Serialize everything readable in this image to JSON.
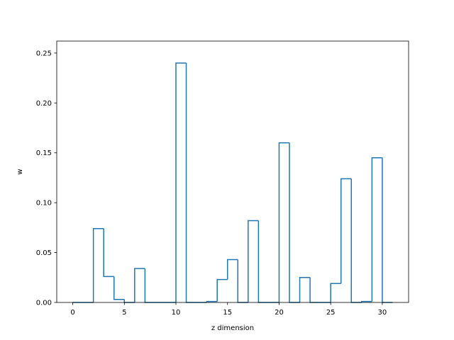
{
  "chart_data": {
    "type": "bar",
    "style": "step-histogram",
    "title": "",
    "xlabel": "z dimension",
    "ylabel": "w",
    "x": [
      0,
      1,
      2,
      3,
      4,
      5,
      6,
      7,
      8,
      9,
      10,
      11,
      12,
      13,
      14,
      15,
      16,
      17,
      18,
      19,
      20,
      21,
      22,
      23,
      24,
      25,
      26,
      27,
      28,
      29,
      30
    ],
    "values": [
      0,
      0,
      0.074,
      0.026,
      0.003,
      0,
      0.034,
      0,
      0,
      0,
      0.24,
      0,
      0,
      0.001,
      0.023,
      0.043,
      0,
      0.082,
      0,
      0,
      0.16,
      0,
      0.025,
      0,
      0,
      0.019,
      0.124,
      0,
      0.001,
      0.145,
      0
    ],
    "xlim": [
      -1.55,
      32.55
    ],
    "ylim": [
      0,
      0.262
    ],
    "xticks": [
      0,
      5,
      10,
      15,
      20,
      25,
      30
    ],
    "yticks": [
      0.0,
      0.05,
      0.1,
      0.15,
      0.2,
      0.25
    ],
    "xtick_labels": [
      "0",
      "5",
      "10",
      "15",
      "20",
      "25",
      "30"
    ],
    "ytick_labels": [
      "0.00",
      "0.05",
      "0.10",
      "0.15",
      "0.20",
      "0.25"
    ],
    "grid": false,
    "legend": "none",
    "color": "#1f77b4"
  }
}
